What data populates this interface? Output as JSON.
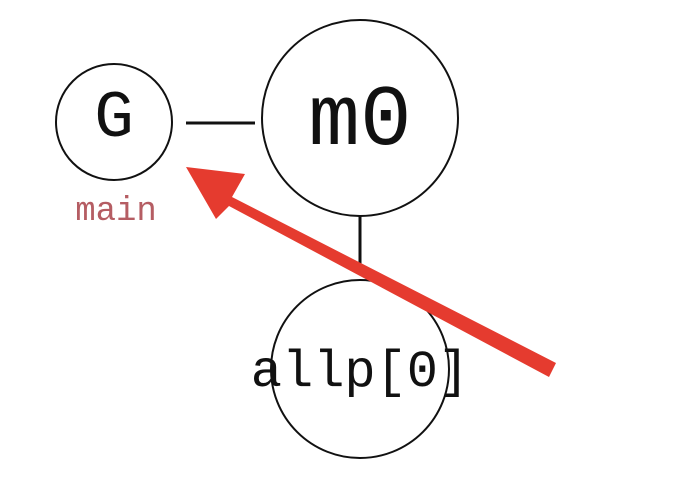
{
  "nodes": {
    "g": {
      "label": "G"
    },
    "m0": {
      "label": "m0"
    },
    "allp0": {
      "label": "allp[0]"
    }
  },
  "annotations": {
    "main_label": "main"
  },
  "colors": {
    "node_stroke": "#111111",
    "main_label": "#b55d63",
    "arrow": "#e53b2f",
    "background": "#ffffff"
  }
}
